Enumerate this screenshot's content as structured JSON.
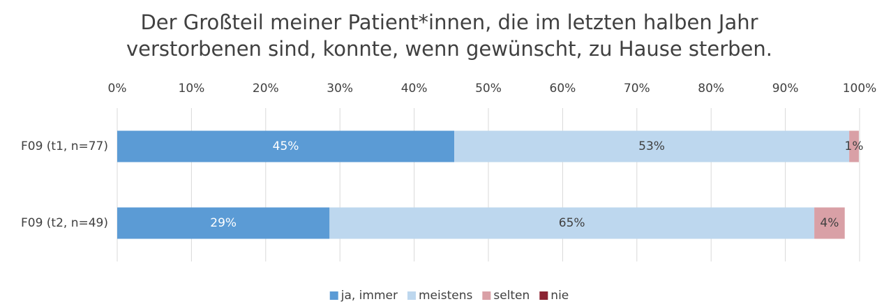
{
  "chart_data": {
    "type": "stacked_barh",
    "title": [
      "Der Großteil meiner Patient*innen, die im letzten halben Jahr",
      "verstorbenen sind, konnte, wenn gewünscht, zu Hause sterben."
    ],
    "categories": [
      "F09 (t1, n=77)",
      "F09 (t2, n=49)"
    ],
    "series": [
      {
        "name": "ja, immer",
        "color": "#5b9bd5",
        "values": [
          45.4,
          28.6
        ],
        "value_labels": [
          "45%",
          "29%"
        ]
      },
      {
        "name": "meistens",
        "color": "#bdd7ee",
        "values": [
          53.2,
          65.3
        ],
        "value_labels": [
          "53%",
          "65%"
        ]
      },
      {
        "name": "selten",
        "color": "#d9a0a6",
        "values": [
          1.3,
          4.1
        ],
        "value_labels": [
          "1%",
          "4%"
        ]
      },
      {
        "name": "nie",
        "color": "#8b2332",
        "values": [
          0,
          0
        ]
      }
    ],
    "xlim": [
      0,
      100
    ],
    "xticks": [
      {
        "value": 0,
        "label": "0%"
      },
      {
        "value": 10,
        "label": "10%"
      },
      {
        "value": 20,
        "label": "20%"
      },
      {
        "value": 30,
        "label": "30%"
      },
      {
        "value": 40,
        "label": "40%"
      },
      {
        "value": 50,
        "label": "50%"
      },
      {
        "value": 60,
        "label": "60%"
      },
      {
        "value": 70,
        "label": "70%"
      },
      {
        "value": 80,
        "label": "80%"
      },
      {
        "value": 90,
        "label": "90%"
      },
      {
        "value": 100,
        "label": "100%"
      }
    ],
    "grid": true,
    "legend": "bottom"
  }
}
